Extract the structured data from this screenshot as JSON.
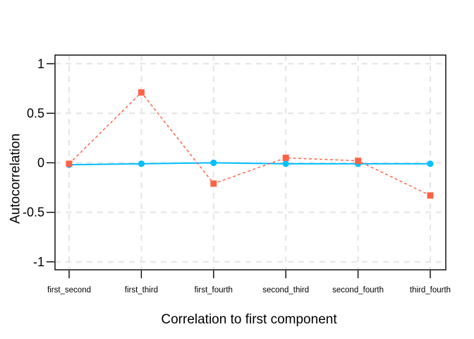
{
  "figure": {
    "background": "#ffffff",
    "panel_border_color": "#000000",
    "grid_color": "#e4e4e4",
    "text_color": "#000000"
  },
  "chart_data": {
    "type": "line",
    "title": "",
    "xlabel": "Correlation to first component",
    "ylabel": "Autocorrelation",
    "categories": [
      "first_second",
      "first_third",
      "first_fourth",
      "second_third",
      "second_fourth",
      "third_fourth"
    ],
    "ytick_labels": [
      "1",
      "0.5",
      "0",
      "-0.5",
      "-1"
    ],
    "ytick_values": [
      1,
      0.5,
      0,
      -0.5,
      -1
    ],
    "ylim": [
      -1.08,
      1.08
    ],
    "grid": "dashed-both-axes",
    "legend": "none",
    "series": [
      {
        "name": "blue-circles-solid-line",
        "color": "#00BFFF",
        "marker": "circle",
        "line_style": "solid",
        "values": [
          -0.02,
          -0.01,
          0.0,
          -0.01,
          -0.01,
          -0.01
        ]
      },
      {
        "name": "red-squares-dashed-line",
        "color": "#FF6347",
        "marker": "square",
        "line_style": "dashed",
        "values": [
          -0.01,
          0.71,
          -0.21,
          0.05,
          0.02,
          -0.33
        ]
      }
    ]
  }
}
